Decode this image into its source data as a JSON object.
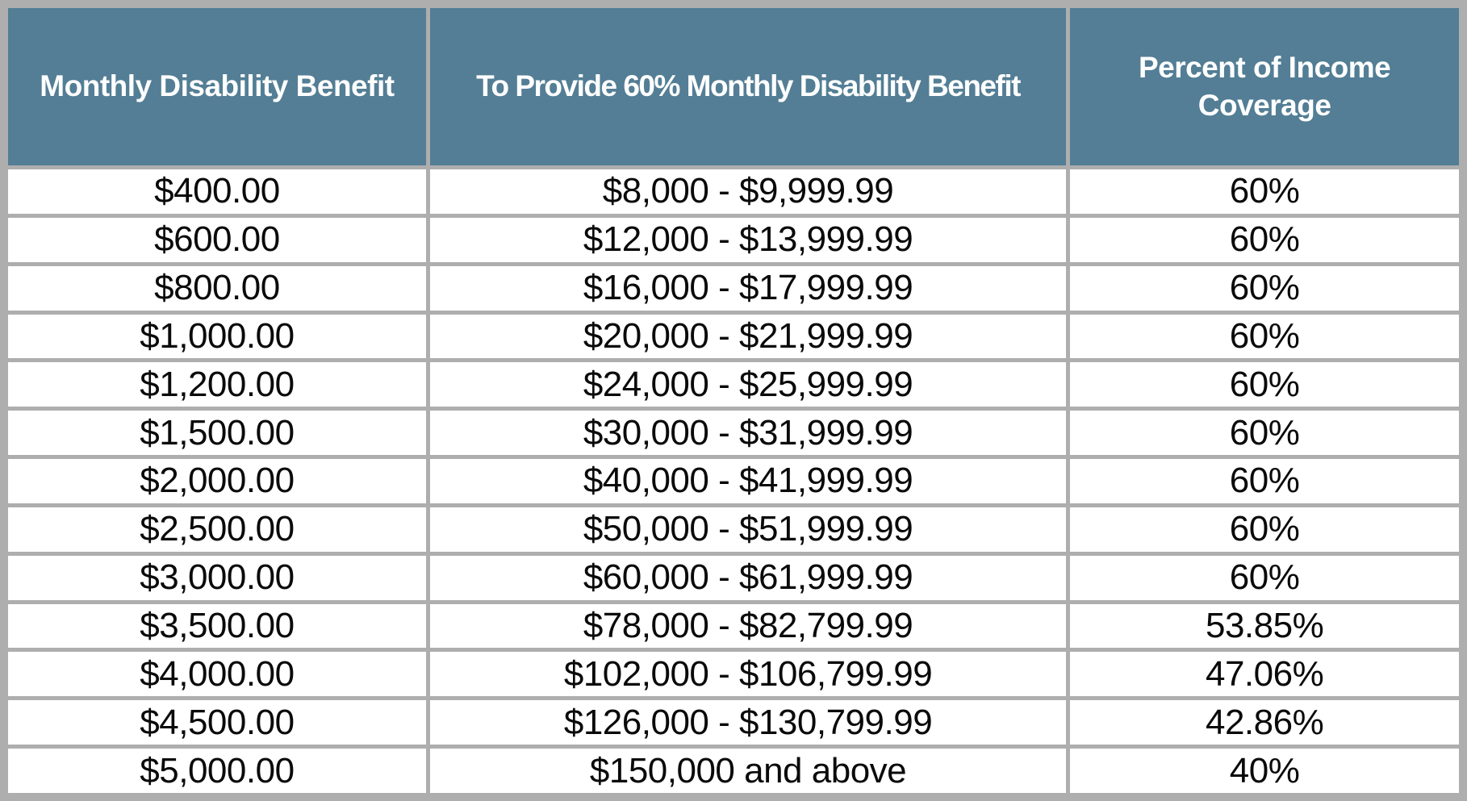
{
  "table": {
    "columns": [
      "Monthly Disability Benefit",
      "To Provide 60% Monthly Disability Benefit",
      "Percent of Income Coverage"
    ],
    "rows": [
      [
        "$400.00",
        "$8,000 - $9,999.99",
        "60%"
      ],
      [
        "$600.00",
        "$12,000 - $13,999.99",
        "60%"
      ],
      [
        "$800.00",
        "$16,000 - $17,999.99",
        "60%"
      ],
      [
        "$1,000.00",
        "$20,000 - $21,999.99",
        "60%"
      ],
      [
        "$1,200.00",
        "$24,000 - $25,999.99",
        "60%"
      ],
      [
        "$1,500.00",
        "$30,000 - $31,999.99",
        "60%"
      ],
      [
        "$2,000.00",
        "$40,000 - $41,999.99",
        "60%"
      ],
      [
        "$2,500.00",
        "$50,000 - $51,999.99",
        "60%"
      ],
      [
        "$3,000.00",
        "$60,000 - $61,999.99",
        "60%"
      ],
      [
        "$3,500.00",
        "$78,000 - $82,799.99",
        "53.85%"
      ],
      [
        "$4,000.00",
        "$102,000 - $106,799.99",
        "47.06%"
      ],
      [
        "$4,500.00",
        "$126,000 - $130,799.99",
        "42.86%"
      ],
      [
        "$5,000.00",
        "$150,000 and above",
        "40%"
      ]
    ]
  },
  "colors": {
    "header_bg": "#537E95",
    "header_text": "#FFFFFF",
    "border": "#AEAEAE",
    "cell_bg": "#FFFFFF",
    "cell_text": "#0A0A0A"
  }
}
